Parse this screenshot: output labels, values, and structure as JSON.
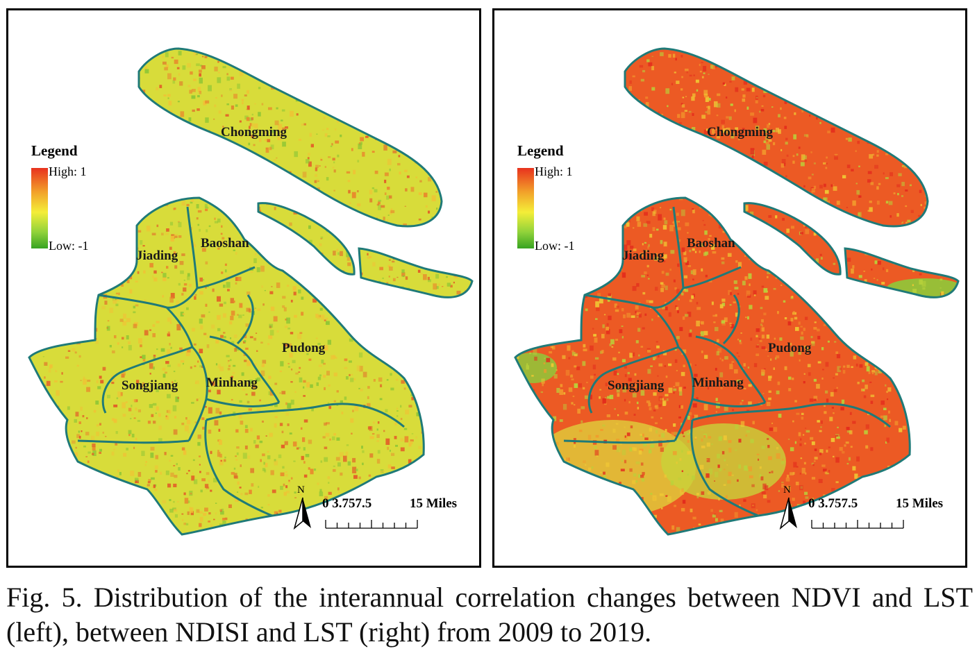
{
  "figure": {
    "caption": "Fig. 5.  Distribution of the interannual correlation changes between NDVI and LST (left), between NDISI and LST (right) from 2009 to 2019."
  },
  "legend": {
    "title": "Legend",
    "high_label": "High: 1",
    "low_label": "Low: -1",
    "high_value": 1,
    "low_value": -1,
    "colors": [
      "#e8321e",
      "#f2a22a",
      "#f4ee38",
      "#8fd23a",
      "#37a321"
    ]
  },
  "districts": [
    "Chongming",
    "Jiading",
    "Baoshan",
    "Pudong",
    "Songjiang",
    "Minhang"
  ],
  "scale": {
    "ticks_label": "0 3.757.5",
    "end_label": "15 Miles"
  },
  "north_arrow": {
    "label": "N"
  },
  "maps": [
    {
      "id": "left",
      "comparison": "NDVI and LST",
      "base_color": "#d8dc3a",
      "speckle_colors": [
        "#e9882c",
        "#f0c235",
        "#8ec635",
        "#e35b27"
      ]
    },
    {
      "id": "right",
      "comparison": "NDISI and LST",
      "base_color": "#ec5a24",
      "speckle_colors": [
        "#e32a1c",
        "#f29a2c",
        "#b9d23a",
        "#f0c834"
      ]
    }
  ],
  "colors": {
    "boundary": "#1f7a78",
    "frame": "#000000"
  }
}
